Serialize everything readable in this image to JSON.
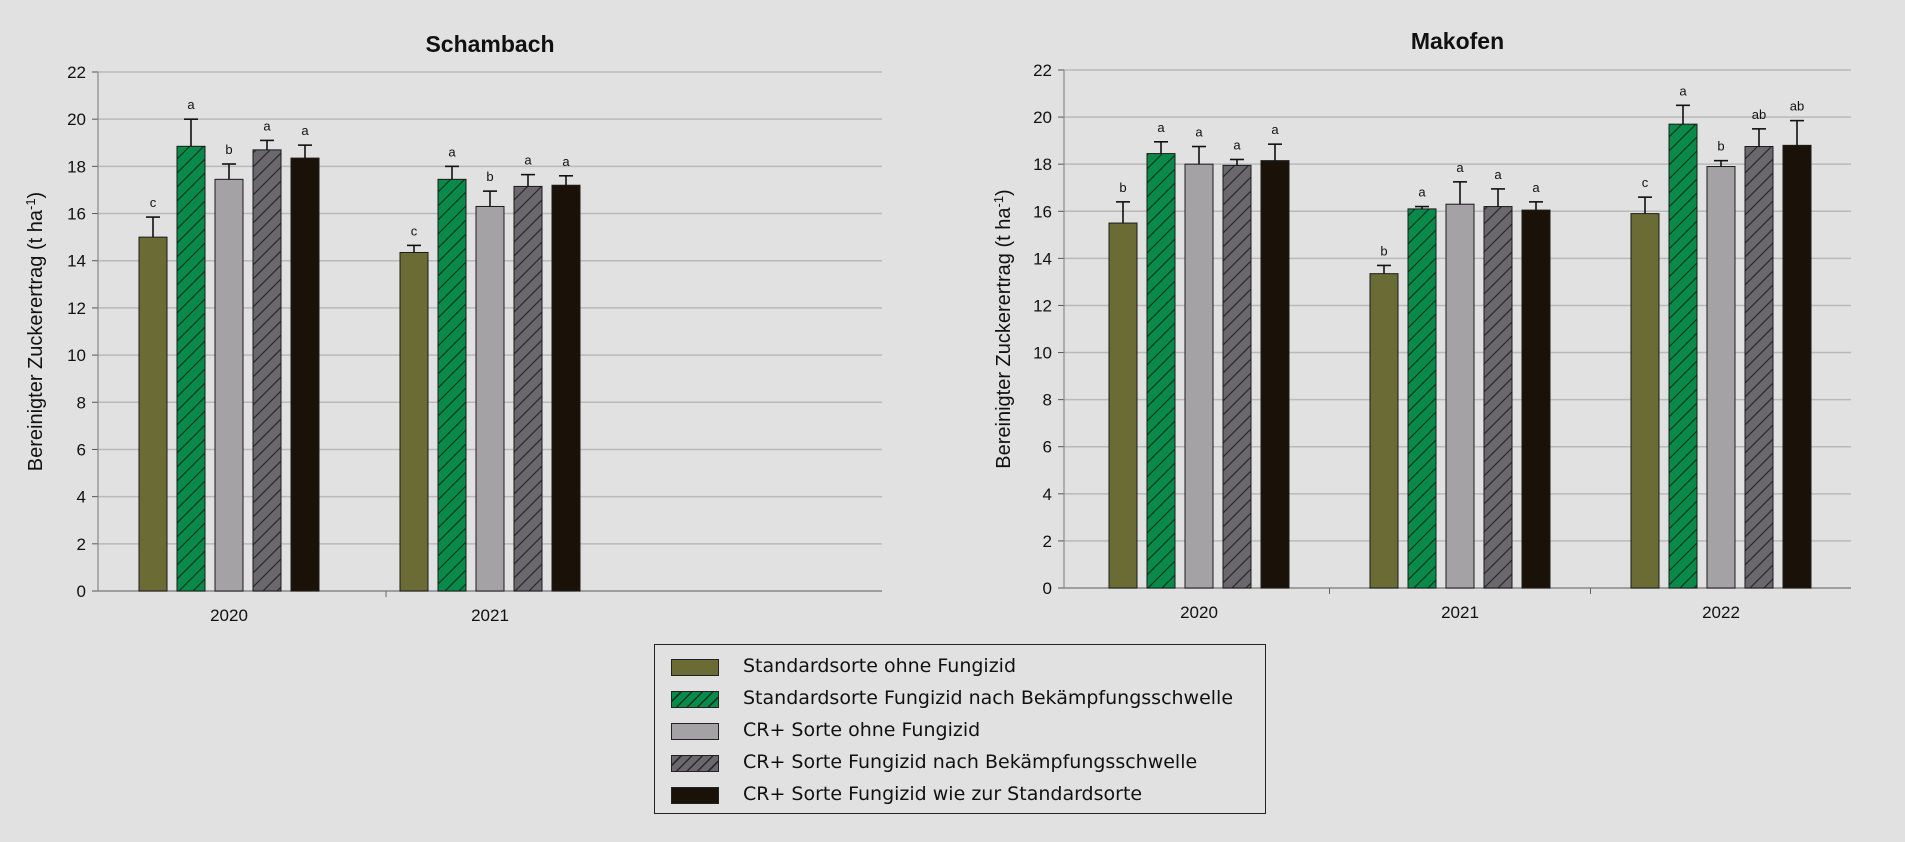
{
  "series_styles": [
    {
      "color": "#6b6b36",
      "hatch": false
    },
    {
      "color": "#0a8a4a",
      "hatch": true
    },
    {
      "color": "#a5a2a5",
      "hatch": false
    },
    {
      "color": "#6a676d",
      "hatch": true
    },
    {
      "color": "#1a1209",
      "hatch": false
    }
  ],
  "legend": {
    "items": [
      "Standardsorte ohne Fungizid",
      "Standardsorte Fungizid nach Bekämpfungsschwelle",
      "CR+ Sorte ohne Fungizid",
      "CR+ Sorte Fungizid nach Bekämpfungsschwelle",
      "CR+ Sorte Fungizid wie zur Standardsorte"
    ]
  },
  "chart_data": [
    {
      "type": "bar",
      "title": "Schambach",
      "ylabel": "Bereinigter Zuckerertrag (t ha",
      "ylabel_sup": "-1",
      "ylabel_close": ")",
      "ylim": [
        0,
        22
      ],
      "yticks": [
        0,
        2,
        4,
        6,
        8,
        10,
        12,
        14,
        16,
        18,
        20,
        22
      ],
      "grid": true,
      "categories": [
        "2020",
        "2021"
      ],
      "series": [
        {
          "name": "Standardsorte ohne Fungizid",
          "values": [
            15.0,
            14.35
          ],
          "errors": [
            0.85,
            0.3
          ],
          "letters": [
            "c",
            "c"
          ]
        },
        {
          "name": "Standardsorte Fungizid nach Bekämpfungsschwelle",
          "values": [
            18.85,
            17.45
          ],
          "errors": [
            1.15,
            0.55
          ],
          "letters": [
            "a",
            "a"
          ]
        },
        {
          "name": "CR+ Sorte ohne Fungizid",
          "values": [
            17.45,
            16.3
          ],
          "errors": [
            0.65,
            0.65
          ],
          "letters": [
            "b",
            "b"
          ]
        },
        {
          "name": "CR+ Sorte Fungizid nach Bekämpfungsschwelle",
          "values": [
            18.7,
            17.15
          ],
          "errors": [
            0.4,
            0.5
          ],
          "letters": [
            "a",
            "a"
          ]
        },
        {
          "name": "CR+ Sorte Fungizid wie zur Standardsorte",
          "values": [
            18.35,
            17.2
          ],
          "errors": [
            0.55,
            0.4
          ],
          "letters": [
            "a",
            "a"
          ]
        }
      ]
    },
    {
      "type": "bar",
      "title": "Makofen",
      "ylabel": "Bereinigter Zuckerertrag (t ha",
      "ylabel_sup": "-1",
      "ylabel_close": ")",
      "ylim": [
        0,
        22
      ],
      "yticks": [
        0,
        2,
        4,
        6,
        8,
        10,
        12,
        14,
        16,
        18,
        20,
        22
      ],
      "grid": true,
      "categories": [
        "2020",
        "2021",
        "2022"
      ],
      "series": [
        {
          "name": "Standardsorte ohne Fungizid",
          "values": [
            15.5,
            13.35,
            15.9
          ],
          "errors": [
            0.9,
            0.35,
            0.7
          ],
          "letters": [
            "b",
            "b",
            "c"
          ]
        },
        {
          "name": "Standardsorte Fungizid nach Bekämpfungsschwelle",
          "values": [
            18.45,
            16.1,
            19.7
          ],
          "errors": [
            0.5,
            0.1,
            0.8
          ],
          "letters": [
            "a",
            "a",
            "a"
          ]
        },
        {
          "name": "CR+ Sorte ohne Fungizid",
          "values": [
            18.0,
            16.3,
            17.9
          ],
          "errors": [
            0.75,
            0.95,
            0.25
          ],
          "letters": [
            "a",
            "a",
            "b"
          ]
        },
        {
          "name": "CR+ Sorte Fungizid nach Bekämpfungsschwelle",
          "values": [
            17.95,
            16.2,
            18.75
          ],
          "errors": [
            0.25,
            0.75,
            0.75
          ],
          "letters": [
            "a",
            "a",
            "ab"
          ]
        },
        {
          "name": "CR+ Sorte Fungizid wie zur Standardsorte",
          "values": [
            18.15,
            16.05,
            18.8
          ],
          "errors": [
            0.7,
            0.35,
            1.05
          ],
          "letters": [
            "a",
            "a",
            "ab"
          ]
        }
      ]
    }
  ]
}
